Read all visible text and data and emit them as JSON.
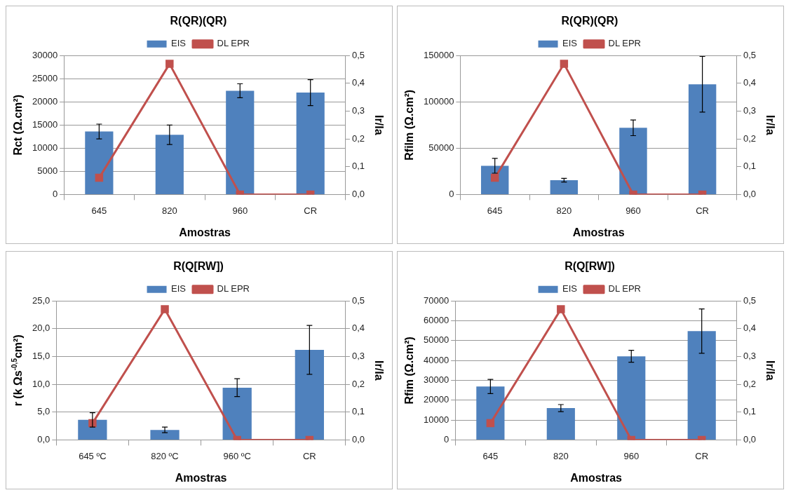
{
  "chart_data": [
    {
      "type": "bar",
      "title": "R(QR)(QR)",
      "xlabel": "Amostras",
      "ylabel": "Rct (Ω.cm²)",
      "y2label": "Ir/Ia",
      "categories": [
        "645",
        "820",
        "960",
        "CR"
      ],
      "series": [
        {
          "name": "EIS",
          "color": "#4f81bd",
          "values": [
            13600,
            12900,
            22400,
            22000
          ],
          "errors": [
            1600,
            2100,
            1500,
            2800
          ]
        },
        {
          "name": "DL EPR",
          "type": "line",
          "axis": "y2",
          "color": "#c0504d",
          "values": [
            0.06,
            0.47,
            0,
            0
          ]
        }
      ],
      "ylim": [
        0,
        30000
      ],
      "yticks": [
        0,
        5000,
        10000,
        15000,
        20000,
        25000,
        30000
      ],
      "y2lim": [
        0,
        0.5
      ],
      "y2ticks": [
        {
          "value": 0,
          "label": "0,0"
        },
        {
          "value": 0.1,
          "label": "0,1"
        },
        {
          "value": 0.2,
          "label": "0,2"
        },
        {
          "value": 0.3,
          "label": "0,3"
        },
        {
          "value": 0.4,
          "label": "0,4"
        },
        {
          "value": 0.5,
          "label": "0,5"
        }
      ],
      "grid": "y",
      "legend": "top",
      "marker": "square"
    },
    {
      "type": "bar",
      "title": "R(QR)(QR)",
      "xlabel": "Amostras",
      "ylabel": "Rfilm (Ω.cm²)",
      "y2label": "Ir/Ia",
      "categories": [
        "645",
        "820",
        "960",
        "CR"
      ],
      "series": [
        {
          "name": "EIS",
          "color": "#4f81bd",
          "values": [
            31000,
            15500,
            72000,
            119000
          ],
          "errors": [
            8000,
            2000,
            8500,
            30000
          ]
        },
        {
          "name": "DL EPR",
          "type": "line",
          "axis": "y2",
          "color": "#c0504d",
          "values": [
            0.06,
            0.47,
            0,
            0
          ]
        }
      ],
      "ylim": [
        0,
        150000
      ],
      "yticks": [
        0,
        50000,
        100000,
        150000
      ],
      "y2lim": [
        0,
        0.5
      ],
      "y2ticks": [
        {
          "value": 0,
          "label": "0,0"
        },
        {
          "value": 0.1,
          "label": "0,1"
        },
        {
          "value": 0.2,
          "label": "0,2"
        },
        {
          "value": 0.3,
          "label": "0,3"
        },
        {
          "value": 0.4,
          "label": "0,4"
        },
        {
          "value": 0.5,
          "label": "0,5"
        }
      ],
      "grid": "y",
      "legend": "top",
      "marker": "square"
    },
    {
      "type": "bar",
      "title": "R(Q[RW])",
      "xlabel": "Amostras",
      "ylabel": "r (k Ωs$^{-0,5}$cm²)",
      "y2label": "Ir/Ia",
      "categories": [
        "645 ºC",
        "820 ºC",
        "960 ºC",
        "CR"
      ],
      "series": [
        {
          "name": "EIS",
          "color": "#4f81bd",
          "values": [
            3.6,
            1.8,
            9.4,
            16.2
          ],
          "errors": [
            1.3,
            0.5,
            1.6,
            4.4
          ]
        },
        {
          "name": "DL EPR",
          "type": "line",
          "axis": "y2",
          "color": "#c0504d",
          "values": [
            0.06,
            0.47,
            0,
            0
          ]
        }
      ],
      "ylim": [
        0,
        25
      ],
      "yticks": [
        {
          "value": 0,
          "label": "0,0"
        },
        {
          "value": 5,
          "label": "5,0"
        },
        {
          "value": 10,
          "label": "10,0"
        },
        {
          "value": 15,
          "label": "15,0"
        },
        {
          "value": 20,
          "label": "20,0"
        },
        {
          "value": 25,
          "label": "25,0"
        }
      ],
      "y2lim": [
        0,
        0.5
      ],
      "y2ticks": [
        {
          "value": 0,
          "label": "0,0"
        },
        {
          "value": 0.1,
          "label": "0,1"
        },
        {
          "value": 0.2,
          "label": "0,2"
        },
        {
          "value": 0.3,
          "label": "0,3"
        },
        {
          "value": 0.4,
          "label": "0,4"
        },
        {
          "value": 0.5,
          "label": "0,5"
        }
      ],
      "grid": "y",
      "legend": "top",
      "marker": "square"
    },
    {
      "type": "bar",
      "title": "R(Q[RW])",
      "xlabel": "Amostras",
      "ylabel": "Rfim (Ω.cm²)",
      "y2label": "Ir/Ia",
      "categories": [
        "645",
        "820",
        "960",
        "CR"
      ],
      "series": [
        {
          "name": "EIS",
          "color": "#4f81bd",
          "values": [
            26900,
            16000,
            42100,
            54800
          ],
          "errors": [
            3600,
            1800,
            3000,
            11200
          ]
        },
        {
          "name": "DL EPR",
          "type": "line",
          "axis": "y2",
          "color": "#c0504d",
          "values": [
            0.06,
            0.47,
            0,
            0
          ]
        }
      ],
      "ylim": [
        0,
        70000
      ],
      "yticks": [
        0,
        10000,
        20000,
        30000,
        40000,
        50000,
        60000,
        70000
      ],
      "y2lim": [
        0,
        0.5
      ],
      "y2ticks": [
        {
          "value": 0,
          "label": "0,0"
        },
        {
          "value": 0.1,
          "label": "0,1"
        },
        {
          "value": 0.2,
          "label": "0,2"
        },
        {
          "value": 0.3,
          "label": "0,3"
        },
        {
          "value": 0.4,
          "label": "0,4"
        },
        {
          "value": 0.5,
          "label": "0,5"
        }
      ],
      "grid": "y",
      "legend": "top",
      "marker": "square"
    }
  ]
}
